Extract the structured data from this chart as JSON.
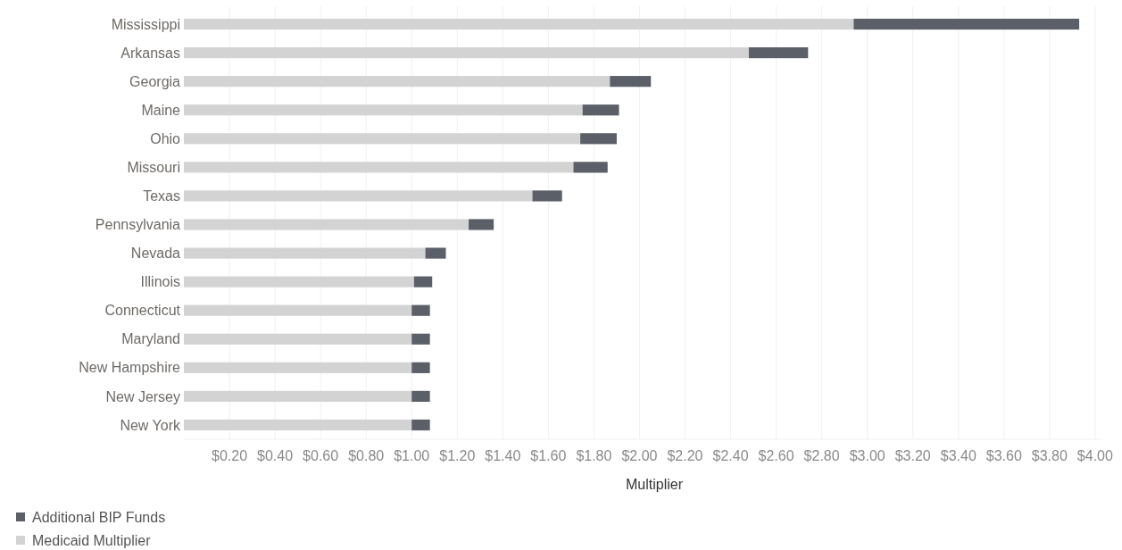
{
  "chart_data": {
    "type": "bar",
    "orientation": "horizontal",
    "stacked": true,
    "xlabel": "Multiplier",
    "categories": [
      "Mississippi",
      "Arkansas",
      "Georgia",
      "Maine",
      "Ohio",
      "Missouri",
      "Texas",
      "Pennsylvania",
      "Nevada",
      "Illinois",
      "Connecticut",
      "Maryland",
      "New Hampshire",
      "New Jersey",
      "New York"
    ],
    "series": [
      {
        "name": "Medicaid Multiplier",
        "color": "#d3d3d3",
        "values": [
          2.94,
          2.48,
          1.87,
          1.75,
          1.74,
          1.71,
          1.53,
          1.25,
          1.06,
          1.01,
          1.0,
          1.0,
          1.0,
          1.0,
          1.0
        ]
      },
      {
        "name": "Additional BIP Funds",
        "color": "#5a5f68",
        "values": [
          0.99,
          0.26,
          0.18,
          0.16,
          0.16,
          0.15,
          0.13,
          0.11,
          0.09,
          0.08,
          0.08,
          0.08,
          0.08,
          0.08,
          0.08
        ]
      }
    ],
    "xlim": [
      0,
      4.02
    ],
    "xticks": [
      {
        "value": 0.2,
        "label": "$0.20"
      },
      {
        "value": 0.4,
        "label": "$0.40"
      },
      {
        "value": 0.6,
        "label": "$0.60"
      },
      {
        "value": 0.8,
        "label": "$0.80"
      },
      {
        "value": 1.0,
        "label": "$1.00"
      },
      {
        "value": 1.2,
        "label": "$1.20"
      },
      {
        "value": 1.4,
        "label": "$1.40"
      },
      {
        "value": 1.6,
        "label": "$1.60"
      },
      {
        "value": 1.8,
        "label": "$1.80"
      },
      {
        "value": 2.0,
        "label": "$2.00"
      },
      {
        "value": 2.2,
        "label": "$2.20"
      },
      {
        "value": 2.4,
        "label": "$2.40"
      },
      {
        "value": 2.6,
        "label": "$2.60"
      },
      {
        "value": 2.8,
        "label": "$2.80"
      },
      {
        "value": 3.0,
        "label": "$3.00"
      },
      {
        "value": 3.2,
        "label": "$3.20"
      },
      {
        "value": 3.4,
        "label": "$3.40"
      },
      {
        "value": 3.6,
        "label": "$3.60"
      },
      {
        "value": 3.8,
        "label": "$3.80"
      },
      {
        "value": 4.0,
        "label": "$4.00"
      }
    ],
    "grid": "x",
    "legend": "bottom left"
  }
}
